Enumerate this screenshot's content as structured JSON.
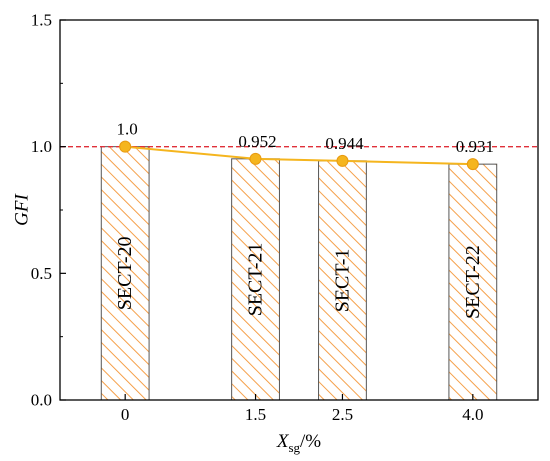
{
  "chart_data": {
    "type": "bar",
    "categories": [
      "0",
      "1.5",
      "2.5",
      "4.0"
    ],
    "x": [
      0,
      1.5,
      2.5,
      4.0
    ],
    "values": [
      1.0,
      0.952,
      0.944,
      0.931
    ],
    "bar_labels": [
      "SECT-20",
      "SECT-21",
      "SECT-1",
      "SECT-22"
    ],
    "data_labels": [
      "1.0",
      "0.952",
      "0.944",
      "0.931"
    ],
    "overlay_line": {
      "type": "line",
      "marker": "circle",
      "values": [
        1.0,
        0.952,
        0.944,
        0.931
      ]
    },
    "reference_line": {
      "y": 1.0,
      "style": "dashed",
      "color": "#e0303a"
    },
    "ylabel": "GFI",
    "xlabel": {
      "main": "X",
      "subscript": "sg",
      "suffix": "/%"
    },
    "ylim": [
      0.0,
      1.5
    ],
    "yticks": [
      "0.0",
      "0.5",
      "1.0",
      "1.5"
    ],
    "xlim": [
      -0.75,
      4.75
    ],
    "bar_width": 0.55,
    "grid": false,
    "colors": {
      "bar_hatch": "#f5a04a",
      "bar_edge": "#555555",
      "line": "#f5b51e",
      "marker": "#f5b51e",
      "reference": "#e0303a"
    }
  }
}
